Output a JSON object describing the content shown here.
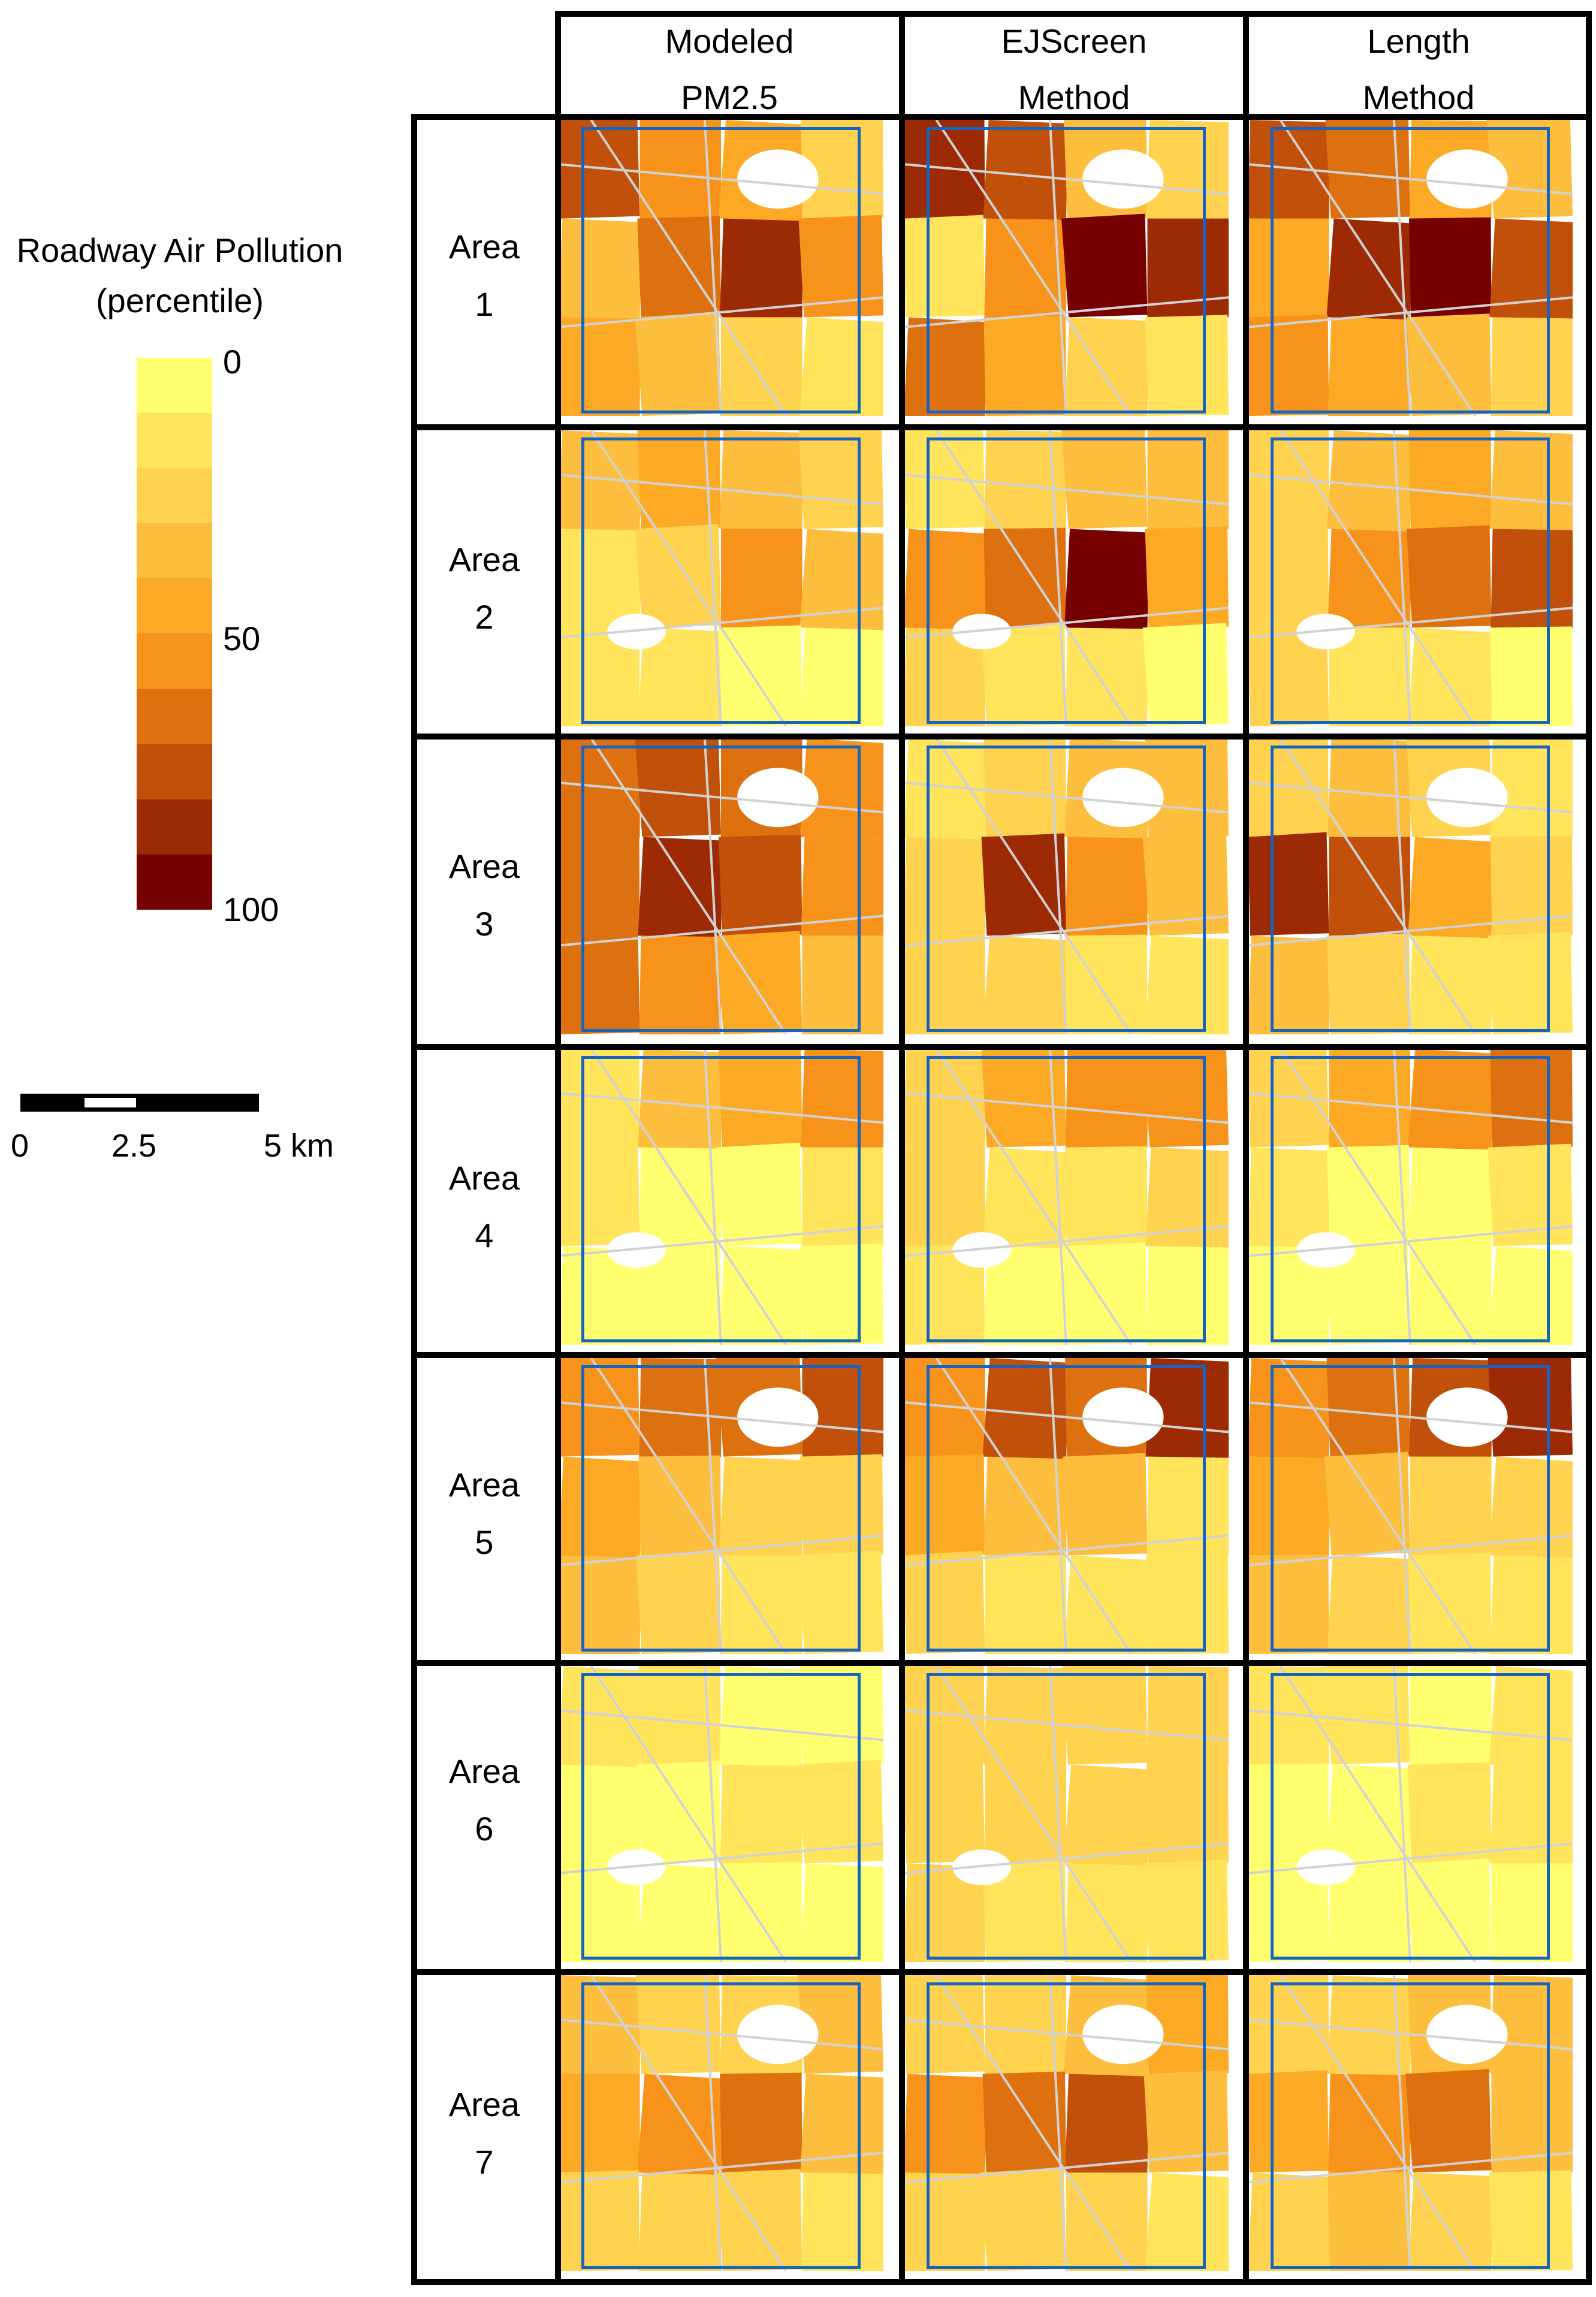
{
  "legend": {
    "title_line1": "Roadway Air Pollution",
    "title_line2": "(percentile)",
    "label_low": "0",
    "label_mid": "50",
    "label_high": "100",
    "colors": [
      "#ffff70",
      "#ffe45c",
      "#ffd34f",
      "#fdbd3d",
      "#fca925",
      "#f7931a",
      "#de710f",
      "#c0500a",
      "#9c2a05",
      "#760100"
    ]
  },
  "scale_bar": {
    "label_0": "0",
    "label_mid": "2.5",
    "label_max": "5 km"
  },
  "columns": [
    {
      "line1": "Modeled",
      "line2": "PM2.5"
    },
    {
      "line1": "EJScreen",
      "line2": "Method"
    },
    {
      "line1": "Length",
      "line2": "Method"
    }
  ],
  "rows": [
    {
      "line1": "Area",
      "line2": "1"
    },
    {
      "line1": "Area",
      "line2": "2"
    },
    {
      "line1": "Area",
      "line2": "3"
    },
    {
      "line1": "Area",
      "line2": "4"
    },
    {
      "line1": "Area",
      "line2": "5"
    },
    {
      "line1": "Area",
      "line2": "6"
    },
    {
      "line1": "Area",
      "line2": "7"
    }
  ],
  "colors": {
    "frame": "#1565c0",
    "grid": "#000000",
    "road": "#d2d2d2"
  },
  "map_levels": [
    [
      [
        8,
        6,
        5,
        3,
        4,
        7,
        9,
        6,
        5,
        4,
        3,
        2
      ],
      [
        9,
        8,
        4,
        3,
        2,
        6,
        10,
        9,
        7,
        5,
        3,
        2
      ],
      [
        8,
        7,
        5,
        4,
        5,
        9,
        10,
        8,
        6,
        5,
        4,
        3
      ]
    ],
    [
      [
        4,
        5,
        4,
        3,
        2,
        3,
        6,
        4,
        2,
        2,
        1,
        1
      ],
      [
        2,
        3,
        4,
        4,
        6,
        7,
        10,
        5,
        3,
        2,
        2,
        1
      ],
      [
        3,
        4,
        5,
        4,
        3,
        6,
        7,
        8,
        3,
        2,
        2,
        1
      ]
    ],
    [
      [
        7,
        8,
        7,
        6,
        7,
        9,
        8,
        6,
        7,
        6,
        5,
        4
      ],
      [
        2,
        3,
        4,
        4,
        3,
        9,
        6,
        4,
        3,
        3,
        2,
        2
      ],
      [
        3,
        4,
        3,
        2,
        9,
        8,
        5,
        3,
        4,
        3,
        2,
        2
      ]
    ],
    [
      [
        2,
        4,
        5,
        6,
        2,
        1,
        1,
        2,
        1,
        1,
        1,
        1
      ],
      [
        3,
        5,
        6,
        6,
        3,
        2,
        2,
        3,
        2,
        1,
        1,
        1
      ],
      [
        3,
        5,
        6,
        7,
        2,
        1,
        1,
        2,
        1,
        1,
        1,
        1
      ]
    ],
    [
      [
        6,
        7,
        7,
        8,
        5,
        4,
        3,
        3,
        4,
        3,
        2,
        2
      ],
      [
        6,
        8,
        7,
        9,
        5,
        4,
        4,
        2,
        3,
        2,
        2,
        2
      ],
      [
        6,
        7,
        8,
        9,
        5,
        4,
        3,
        3,
        4,
        3,
        2,
        2
      ]
    ],
    [
      [
        2,
        2,
        1,
        1,
        1,
        1,
        2,
        2,
        1,
        1,
        1,
        1
      ],
      [
        3,
        3,
        3,
        3,
        3,
        3,
        3,
        3,
        3,
        2,
        2,
        2
      ],
      [
        2,
        2,
        1,
        2,
        1,
        1,
        2,
        2,
        1,
        1,
        1,
        1
      ]
    ],
    [
      [
        4,
        3,
        3,
        4,
        5,
        6,
        7,
        4,
        3,
        3,
        3,
        2
      ],
      [
        3,
        3,
        4,
        5,
        6,
        7,
        8,
        4,
        3,
        3,
        3,
        2
      ],
      [
        3,
        3,
        4,
        4,
        5,
        6,
        7,
        4,
        3,
        4,
        3,
        2
      ]
    ]
  ]
}
